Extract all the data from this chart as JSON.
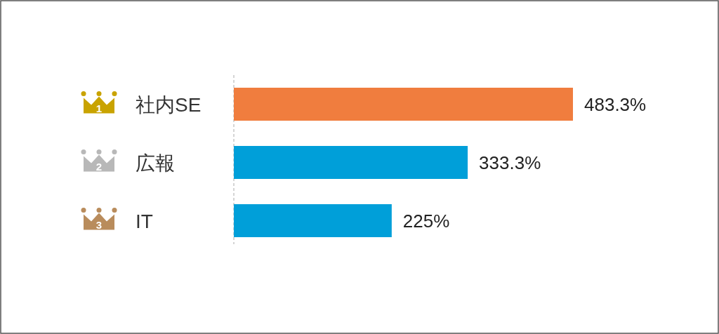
{
  "chart_data": {
    "type": "bar",
    "orientation": "horizontal",
    "categories": [
      "社内SE",
      "広報",
      "IT"
    ],
    "values": [
      483.3,
      333.3,
      225
    ],
    "colors": [
      "#f07d3e",
      "#009fd9",
      "#009fd9"
    ],
    "value_labels": [
      "483.3%",
      "333.3%",
      "225%"
    ],
    "annotations": [
      "1",
      "2",
      "3"
    ],
    "ref_lines": [
      {
        "axis": "x",
        "value": 0,
        "line_style": "dashed",
        "color": "#aaaaaa"
      }
    ]
  }
}
